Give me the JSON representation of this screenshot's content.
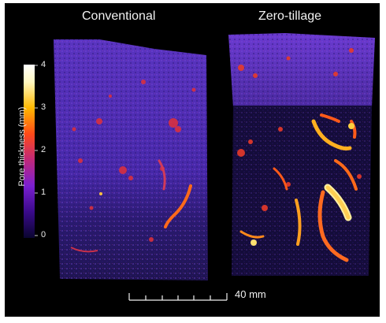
{
  "panels": {
    "left": {
      "title": "Conventional"
    },
    "right": {
      "title": "Zero-tillage"
    }
  },
  "colorbar": {
    "title": "Pore thickness (mm)",
    "ticks": [
      "4",
      "3",
      "2",
      "1",
      "0"
    ],
    "colormap": [
      "#0a0530",
      "#3a0a8a",
      "#7a1fd0",
      "#c0287a",
      "#ff4a18",
      "#ffb800",
      "#fff8c0",
      "#ffffff"
    ]
  },
  "scalebar": {
    "label": "40 mm"
  },
  "colors": {
    "background": "#000000",
    "soil_base": "#4a2aa8",
    "pore_hot": "#ff5a1a",
    "pore_bright": "#ffd040"
  }
}
